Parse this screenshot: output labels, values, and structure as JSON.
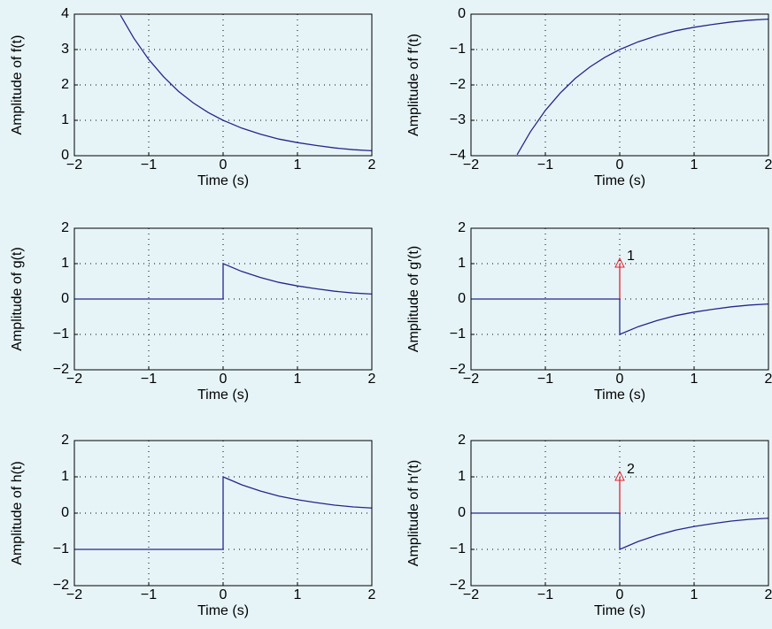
{
  "chart_data": [
    {
      "type": "line",
      "ylabel": "Amplitude of f(t)",
      "xlabel": "Time (s)",
      "xlim": [
        -2,
        2
      ],
      "ylim": [
        0,
        4
      ],
      "grid": true,
      "xticks": [
        {
          "value": -2,
          "label": "−2"
        },
        {
          "value": -1,
          "label": "−1"
        },
        0,
        1,
        2
      ],
      "yticks": [
        0,
        1,
        2,
        3,
        4
      ],
      "series": [
        {
          "color": "#26268c",
          "x": [
            -1.38,
            -1.2,
            -1,
            -0.8,
            -0.6,
            -0.4,
            -0.2,
            0,
            0.25,
            0.5,
            0.75,
            1,
            1.25,
            1.5,
            1.75,
            2
          ],
          "values": [
            3.97,
            3.32,
            2.72,
            2.23,
            1.82,
            1.49,
            1.22,
            1,
            0.78,
            0.61,
            0.47,
            0.37,
            0.29,
            0.22,
            0.17,
            0.14
          ]
        }
      ]
    },
    {
      "type": "line",
      "ylabel": "Amplitude of f′(t)",
      "xlabel": "Time (s)",
      "xlim": [
        -2,
        2
      ],
      "ylim": [
        -4,
        0
      ],
      "grid": true,
      "xticks": [
        {
          "value": -2,
          "label": "−2"
        },
        {
          "value": -1,
          "label": "−1"
        },
        0,
        1,
        2
      ],
      "yticks": [
        {
          "value": -4,
          "label": "−4"
        },
        {
          "value": -3,
          "label": "−3"
        },
        {
          "value": -2,
          "label": "−2"
        },
        {
          "value": -1,
          "label": "−1"
        },
        0
      ],
      "series": [
        {
          "color": "#26268c",
          "x": [
            -1.38,
            -1.2,
            -1,
            -0.8,
            -0.6,
            -0.4,
            -0.2,
            0,
            0.25,
            0.5,
            0.75,
            1,
            1.25,
            1.5,
            1.75,
            2
          ],
          "values": [
            -3.97,
            -3.32,
            -2.72,
            -2.23,
            -1.82,
            -1.49,
            -1.22,
            -1,
            -0.78,
            -0.61,
            -0.47,
            -0.37,
            -0.29,
            -0.22,
            -0.17,
            -0.14
          ]
        }
      ]
    },
    {
      "type": "line",
      "ylabel": "Amplitude of g(t)",
      "xlabel": "Time (s)",
      "xlim": [
        -2,
        2
      ],
      "ylim": [
        -2,
        2
      ],
      "grid": true,
      "xticks": [
        {
          "value": -2,
          "label": "−2"
        },
        {
          "value": -1,
          "label": "−1"
        },
        0,
        1,
        2
      ],
      "yticks": [
        {
          "value": -2,
          "label": "−2"
        },
        {
          "value": -1,
          "label": "−1"
        },
        0,
        1,
        2
      ],
      "series": [
        {
          "color": "#26268c",
          "x": [
            -2,
            0,
            0,
            0.25,
            0.5,
            0.75,
            1,
            1.25,
            1.5,
            1.75,
            2
          ],
          "values": [
            0,
            0,
            1,
            0.78,
            0.61,
            0.47,
            0.37,
            0.29,
            0.22,
            0.17,
            0.14
          ]
        }
      ]
    },
    {
      "type": "line",
      "ylabel": "Amplitude of g′(t)",
      "xlabel": "Time (s)",
      "xlim": [
        -2,
        2
      ],
      "ylim": [
        -2,
        2
      ],
      "grid": true,
      "xticks": [
        {
          "value": -2,
          "label": "−2"
        },
        {
          "value": -1,
          "label": "−1"
        },
        0,
        1,
        2
      ],
      "yticks": [
        {
          "value": -2,
          "label": "−2"
        },
        {
          "value": -1,
          "label": "−1"
        },
        0,
        1,
        2
      ],
      "series": [
        {
          "color": "#26268c",
          "x": [
            -2,
            0,
            0,
            0.25,
            0.5,
            0.75,
            1,
            1.25,
            1.5,
            1.75,
            2
          ],
          "values": [
            0,
            0,
            -1,
            -0.78,
            -0.61,
            -0.47,
            -0.37,
            -0.29,
            -0.22,
            -0.17,
            -0.14
          ]
        }
      ],
      "impulse": {
        "color": "#e8202a",
        "x": 0,
        "value": 1,
        "annotation": "1"
      }
    },
    {
      "type": "line",
      "ylabel": "Amplitude of h(t)",
      "xlabel": "Time (s)",
      "xlim": [
        -2,
        2
      ],
      "ylim": [
        -2,
        2
      ],
      "grid": true,
      "xticks": [
        {
          "value": -2,
          "label": "−2"
        },
        {
          "value": -1,
          "label": "−1"
        },
        0,
        1,
        2
      ],
      "yticks": [
        {
          "value": -2,
          "label": "−2"
        },
        {
          "value": -1,
          "label": "−1"
        },
        0,
        1,
        2
      ],
      "series": [
        {
          "color": "#26268c",
          "x": [
            -2,
            0,
            0,
            0.25,
            0.5,
            0.75,
            1,
            1.25,
            1.5,
            1.75,
            2
          ],
          "values": [
            -1,
            -1,
            1,
            0.78,
            0.61,
            0.47,
            0.37,
            0.29,
            0.22,
            0.17,
            0.14
          ]
        }
      ]
    },
    {
      "type": "line",
      "ylabel": "Amplitude of h′(t)",
      "xlabel": "Time (s)",
      "xlim": [
        -2,
        2
      ],
      "ylim": [
        -2,
        2
      ],
      "grid": true,
      "xticks": [
        {
          "value": -2,
          "label": "−2"
        },
        {
          "value": -1,
          "label": "−1"
        },
        0,
        1,
        2
      ],
      "yticks": [
        {
          "value": -2,
          "label": "−2"
        },
        {
          "value": -1,
          "label": "−1"
        },
        0,
        1,
        2
      ],
      "series": [
        {
          "color": "#26268c",
          "x": [
            -2,
            0,
            0,
            0.25,
            0.5,
            0.75,
            1,
            1.25,
            1.5,
            1.75,
            2
          ],
          "values": [
            0,
            0,
            -1,
            -0.78,
            -0.61,
            -0.47,
            -0.37,
            -0.29,
            -0.22,
            -0.17,
            -0.14
          ]
        }
      ],
      "impulse": {
        "color": "#e8202a",
        "x": 0,
        "value": 1,
        "annotation": "2"
      }
    }
  ]
}
